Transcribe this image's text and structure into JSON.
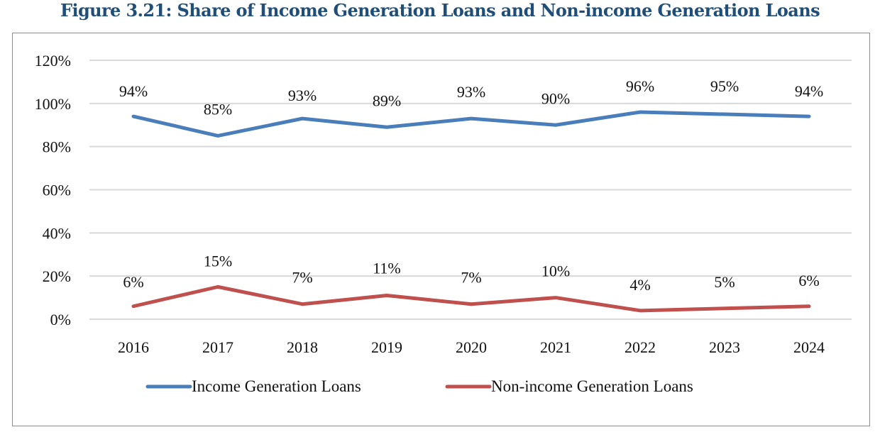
{
  "figure_title": "Figure 3.21: Share of Income Generation Loans and Non-income Generation Loans",
  "chart_data": {
    "type": "line",
    "categories": [
      "2016",
      "2017",
      "2018",
      "2019",
      "2020",
      "2021",
      "2022",
      "2023",
      "2024"
    ],
    "series": [
      {
        "name": "Income Generation Loans",
        "color": "#4a7ebb",
        "values": [
          94,
          85,
          93,
          89,
          93,
          90,
          96,
          95,
          94
        ],
        "labels": [
          "94%",
          "85%",
          "93%",
          "89%",
          "93%",
          "90%",
          "96%",
          "95%",
          "94%"
        ]
      },
      {
        "name": "Non-income Generation Loans",
        "color": "#c0504d",
        "values": [
          6,
          15,
          7,
          11,
          7,
          10,
          4,
          5,
          6
        ],
        "labels": [
          "6%",
          "15%",
          "7%",
          "11%",
          "7%",
          "10%",
          "4%",
          "5%",
          "6%"
        ]
      }
    ],
    "ylim": [
      0,
      120
    ],
    "y_ticks": [
      0,
      20,
      40,
      60,
      80,
      100,
      120
    ],
    "y_tick_labels": [
      "0%",
      "20%",
      "40%",
      "60%",
      "80%",
      "100%",
      "120%"
    ],
    "grid": true,
    "legend": "bottom",
    "grid_color": "#d9d9d9",
    "title": "",
    "xlabel": "",
    "ylabel": ""
  }
}
